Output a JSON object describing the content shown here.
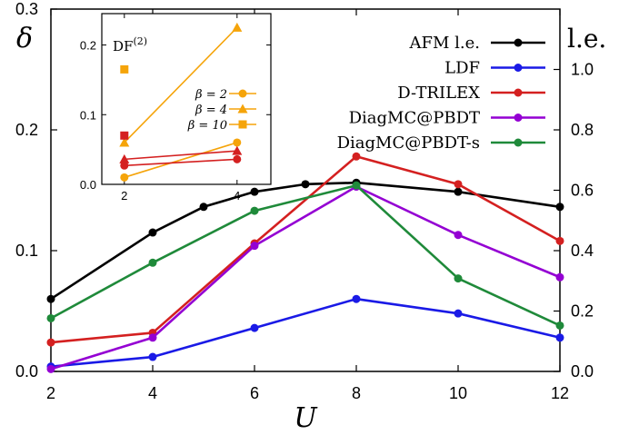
{
  "chart_data": [
    {
      "type": "line",
      "ylabel": "δ",
      "y2label": "l.e.",
      "xlabel": "U",
      "xlim": [
        2,
        12
      ],
      "ylim": [
        0,
        0.3
      ],
      "y2lim": [
        0,
        1.2
      ],
      "xticks": [
        2,
        4,
        6,
        8,
        10,
        12
      ],
      "yticks": [
        0.0,
        0.1,
        0.2,
        0.3
      ],
      "y2ticks": [
        0.0,
        0.2,
        0.4,
        0.6,
        0.8,
        1.0
      ],
      "legend_position": "top-right",
      "series": [
        {
          "name": "AFM l.e.",
          "axis": "right",
          "color": "#000000",
          "x": [
            2,
            4,
            5,
            6,
            7,
            8,
            10,
            12
          ],
          "y": [
            0.24,
            0.46,
            0.545,
            0.595,
            0.62,
            0.625,
            0.595,
            0.545
          ]
        },
        {
          "name": "LDF",
          "axis": "left",
          "color": "#1a1ae6",
          "x": [
            2,
            4,
            6,
            8,
            10,
            12
          ],
          "y": [
            0.004,
            0.012,
            0.036,
            0.06,
            0.048,
            0.028
          ]
        },
        {
          "name": "D-TRILEX",
          "axis": "left",
          "color": "#d42020",
          "x": [
            2,
            4,
            6,
            8,
            10,
            12
          ],
          "y": [
            0.024,
            0.032,
            0.106,
            0.178,
            0.155,
            0.108
          ]
        },
        {
          "name": "DiagMC@PBDT",
          "axis": "left",
          "color": "#9400d3",
          "x": [
            2,
            4,
            6,
            8,
            10,
            12
          ],
          "y": [
            0.002,
            0.028,
            0.104,
            0.153,
            0.113,
            0.078
          ]
        },
        {
          "name": "DiagMC@PBDT-s",
          "axis": "left",
          "color": "#1f8a3a",
          "x": [
            2,
            4,
            6,
            8,
            10,
            12
          ],
          "y": [
            0.044,
            0.09,
            0.133,
            0.154,
            0.077,
            0.038
          ]
        }
      ]
    },
    {
      "type": "line",
      "title": "DF(2)",
      "xlim": [
        1.6,
        4.6
      ],
      "ylim": [
        0,
        0.245
      ],
      "xticks": [
        2,
        4
      ],
      "yticks": [
        0.0,
        0.1,
        0.2
      ],
      "legend_position": "center-right",
      "series": [
        {
          "name": "β = 2",
          "color": "#f5a40a",
          "marker": "circle",
          "x": [
            2,
            4
          ],
          "y": [
            0.01,
            0.06
          ]
        },
        {
          "name": "β = 4",
          "color": "#f5a40a",
          "marker": "triangle",
          "x": [
            2,
            4
          ],
          "y": [
            0.06,
            0.225
          ]
        },
        {
          "name": "β = 10",
          "color": "#f5a40a",
          "marker": "square",
          "x": [
            2
          ],
          "y": [
            0.165
          ]
        },
        {
          "name": "",
          "color": "#d42020",
          "marker": "circle",
          "x": [
            2,
            4
          ],
          "y": [
            0.027,
            0.036
          ]
        },
        {
          "name": "",
          "color": "#d42020",
          "marker": "triangle",
          "x": [
            2,
            4
          ],
          "y": [
            0.036,
            0.048
          ]
        },
        {
          "name": "",
          "color": "#d42020",
          "marker": "square",
          "x": [
            2
          ],
          "y": [
            0.07
          ]
        }
      ]
    }
  ]
}
